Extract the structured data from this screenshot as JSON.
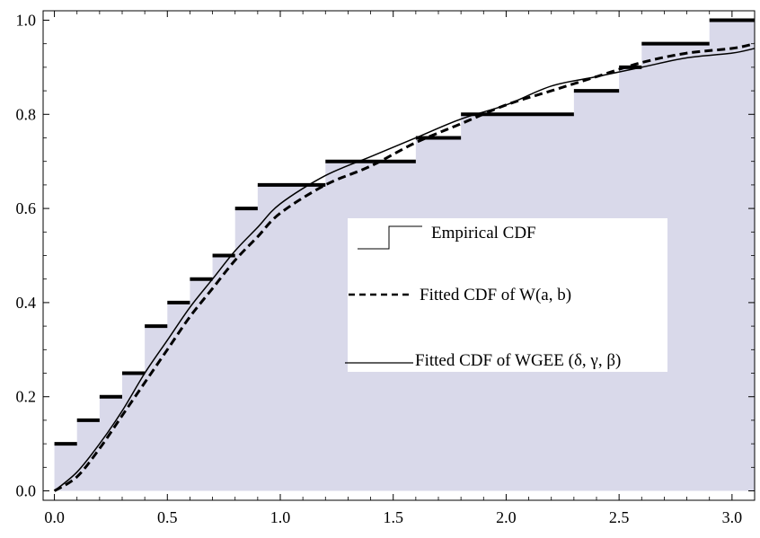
{
  "chart_data": {
    "type": "line",
    "title": "",
    "xlabel": "",
    "ylabel": "",
    "xlim": [
      -0.05,
      3.1
    ],
    "ylim": [
      -0.02,
      1.02
    ],
    "x_ticks": [
      "0.0",
      "0.5",
      "1.0",
      "1.5",
      "2.0",
      "2.5",
      "3.0"
    ],
    "x_tick_values": [
      0.0,
      0.5,
      1.0,
      1.5,
      2.0,
      2.5,
      3.0
    ],
    "y_ticks": [
      "0.0",
      "0.2",
      "0.4",
      "0.6",
      "0.8",
      "1.0"
    ],
    "y_tick_values": [
      0.0,
      0.2,
      0.4,
      0.6,
      0.8,
      1.0
    ],
    "grid": false,
    "fill_color": "#d9d9ea",
    "series": [
      {
        "name": "Empirical CDF",
        "style": "step",
        "steps": [
          {
            "x0": 0.0,
            "x1": 0.1,
            "y": 0.1
          },
          {
            "x0": 0.1,
            "x1": 0.2,
            "y": 0.15
          },
          {
            "x0": 0.2,
            "x1": 0.3,
            "y": 0.2
          },
          {
            "x0": 0.3,
            "x1": 0.4,
            "y": 0.25
          },
          {
            "x0": 0.4,
            "x1": 0.5,
            "y": 0.35
          },
          {
            "x0": 0.5,
            "x1": 0.6,
            "y": 0.4
          },
          {
            "x0": 0.6,
            "x1": 0.7,
            "y": 0.45
          },
          {
            "x0": 0.7,
            "x1": 0.8,
            "y": 0.5
          },
          {
            "x0": 0.8,
            "x1": 0.9,
            "y": 0.6
          },
          {
            "x0": 0.9,
            "x1": 1.2,
            "y": 0.65
          },
          {
            "x0": 1.2,
            "x1": 1.6,
            "y": 0.7
          },
          {
            "x0": 1.6,
            "x1": 1.8,
            "y": 0.75
          },
          {
            "x0": 1.8,
            "x1": 2.3,
            "y": 0.8
          },
          {
            "x0": 2.3,
            "x1": 2.5,
            "y": 0.85
          },
          {
            "x0": 2.5,
            "x1": 2.6,
            "y": 0.9
          },
          {
            "x0": 2.6,
            "x1": 2.9,
            "y": 0.95
          },
          {
            "x0": 2.9,
            "x1": 3.1,
            "y": 1.0
          }
        ]
      },
      {
        "name": "Fitted CDF of W(a, b)",
        "style": "dashed",
        "x": [
          0.0,
          0.1,
          0.2,
          0.3,
          0.4,
          0.5,
          0.6,
          0.7,
          0.8,
          0.9,
          1.0,
          1.2,
          1.4,
          1.6,
          1.8,
          2.0,
          2.2,
          2.4,
          2.6,
          2.8,
          3.0,
          3.1
        ],
        "y": [
          0.0,
          0.03,
          0.09,
          0.16,
          0.23,
          0.3,
          0.37,
          0.43,
          0.49,
          0.54,
          0.59,
          0.65,
          0.69,
          0.74,
          0.78,
          0.82,
          0.85,
          0.88,
          0.91,
          0.93,
          0.94,
          0.95
        ]
      },
      {
        "name": "Fitted CDF of WGEE (δ, γ, β)",
        "style": "solid",
        "x": [
          0.0,
          0.1,
          0.2,
          0.3,
          0.4,
          0.5,
          0.6,
          0.7,
          0.8,
          0.9,
          1.0,
          1.2,
          1.4,
          1.6,
          1.8,
          2.0,
          2.2,
          2.4,
          2.6,
          2.8,
          3.0,
          3.1
        ],
        "y": [
          0.0,
          0.04,
          0.1,
          0.17,
          0.25,
          0.32,
          0.39,
          0.45,
          0.51,
          0.56,
          0.61,
          0.67,
          0.71,
          0.75,
          0.79,
          0.82,
          0.86,
          0.88,
          0.9,
          0.92,
          0.93,
          0.94
        ]
      }
    ],
    "legend": {
      "placement": "center-right",
      "entries": [
        "Empirical CDF",
        "Fitted CDF of W(a, b)",
        "Fitted CDF of WGEE (δ, γ, β)"
      ]
    }
  }
}
